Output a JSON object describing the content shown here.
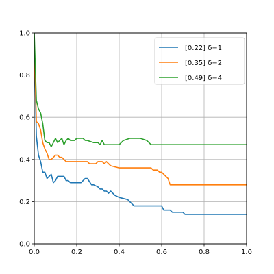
{
  "chart_data": {
    "type": "line",
    "title": "",
    "xlabel": "",
    "ylabel": "",
    "xlim": [
      0,
      1
    ],
    "ylim": [
      0,
      1
    ],
    "x_ticks": [
      "0.0",
      "0.2",
      "0.4",
      "0.6",
      "0.8",
      "1.0"
    ],
    "y_ticks": [
      "0.0",
      "0.2",
      "0.4",
      "0.6",
      "0.8",
      "1.0"
    ],
    "grid": true,
    "legend_position": "top-right",
    "series": [
      {
        "name": "[0.22] δ=1",
        "color": "#1f77b4",
        "x": [
          0.0,
          0.01,
          0.02,
          0.03,
          0.04,
          0.05,
          0.06,
          0.07,
          0.08,
          0.09,
          0.1,
          0.11,
          0.12,
          0.14,
          0.15,
          0.16,
          0.17,
          0.18,
          0.19,
          0.2,
          0.22,
          0.24,
          0.25,
          0.27,
          0.28,
          0.3,
          0.31,
          0.32,
          0.33,
          0.34,
          0.35,
          0.36,
          0.38,
          0.4,
          0.44,
          0.45,
          0.47,
          0.5,
          0.55,
          0.6,
          0.61,
          0.64,
          0.65,
          0.7,
          0.71,
          1.0
        ],
        "y": [
          0.95,
          0.51,
          0.42,
          0.39,
          0.34,
          0.34,
          0.31,
          0.32,
          0.33,
          0.29,
          0.3,
          0.32,
          0.32,
          0.32,
          0.3,
          0.3,
          0.29,
          0.29,
          0.29,
          0.29,
          0.29,
          0.31,
          0.31,
          0.28,
          0.28,
          0.27,
          0.26,
          0.26,
          0.25,
          0.25,
          0.24,
          0.25,
          0.23,
          0.22,
          0.21,
          0.2,
          0.18,
          0.18,
          0.18,
          0.18,
          0.16,
          0.16,
          0.15,
          0.15,
          0.14,
          0.14
        ]
      },
      {
        "name": "[0.35] δ=2",
        "color": "#ff7f0e",
        "x": [
          0.0,
          0.01,
          0.02,
          0.03,
          0.04,
          0.05,
          0.06,
          0.07,
          0.08,
          0.09,
          0.1,
          0.11,
          0.12,
          0.13,
          0.14,
          0.15,
          0.17,
          0.2,
          0.25,
          0.26,
          0.29,
          0.3,
          0.32,
          0.33,
          0.34,
          0.35,
          0.36,
          0.4,
          0.45,
          0.55,
          0.56,
          0.57,
          0.58,
          0.59,
          0.6,
          0.61,
          0.63,
          0.64,
          0.65,
          0.7,
          1.0
        ],
        "y": [
          0.96,
          0.58,
          0.57,
          0.54,
          0.48,
          0.45,
          0.43,
          0.4,
          0.4,
          0.41,
          0.42,
          0.42,
          0.41,
          0.41,
          0.4,
          0.39,
          0.39,
          0.39,
          0.39,
          0.38,
          0.38,
          0.39,
          0.39,
          0.38,
          0.39,
          0.38,
          0.37,
          0.36,
          0.36,
          0.36,
          0.35,
          0.35,
          0.35,
          0.34,
          0.34,
          0.33,
          0.31,
          0.28,
          0.28,
          0.28,
          0.28
        ]
      },
      {
        "name": "[0.49] δ=4",
        "color": "#2ca02c",
        "x": [
          0.0,
          0.01,
          0.02,
          0.03,
          0.04,
          0.05,
          0.06,
          0.07,
          0.08,
          0.09,
          0.1,
          0.11,
          0.12,
          0.13,
          0.14,
          0.15,
          0.16,
          0.17,
          0.18,
          0.19,
          0.2,
          0.21,
          0.22,
          0.23,
          0.24,
          0.25,
          0.28,
          0.3,
          0.31,
          0.32,
          0.33,
          0.34,
          0.4,
          0.42,
          0.45,
          0.5,
          0.53,
          0.55,
          0.6,
          0.7,
          1.0
        ],
        "y": [
          1.0,
          0.68,
          0.64,
          0.62,
          0.57,
          0.49,
          0.48,
          0.48,
          0.46,
          0.48,
          0.5,
          0.48,
          0.49,
          0.5,
          0.47,
          0.49,
          0.5,
          0.49,
          0.49,
          0.49,
          0.5,
          0.5,
          0.5,
          0.5,
          0.49,
          0.49,
          0.48,
          0.48,
          0.47,
          0.49,
          0.47,
          0.47,
          0.47,
          0.49,
          0.5,
          0.5,
          0.49,
          0.47,
          0.47,
          0.47,
          0.47
        ]
      }
    ]
  }
}
